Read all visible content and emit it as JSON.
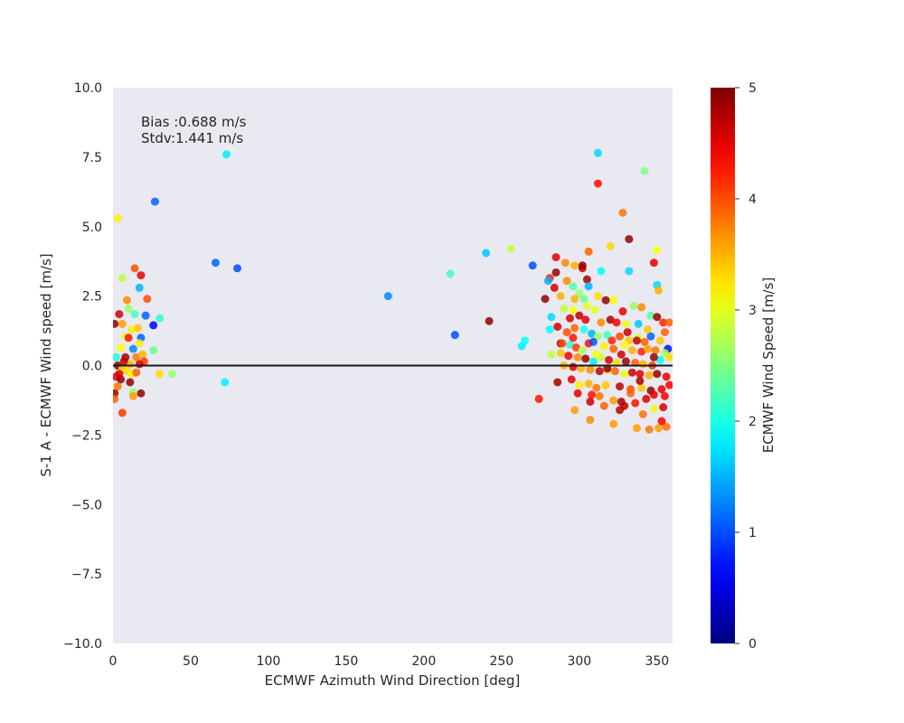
{
  "chart_data": {
    "type": "scatter",
    "xlabel": "ECMWF Azimuth Wind Direction [deg]",
    "ylabel": "S-1 A - ECMWF Wind speed [m/s]",
    "xlim": [
      0,
      360
    ],
    "ylim": [
      -10,
      10
    ],
    "x_ticks": [
      "0",
      "50",
      "100",
      "150",
      "200",
      "250",
      "300",
      "350"
    ],
    "y_ticks": [
      "10.0",
      "7.5",
      "5.0",
      "2.5",
      "0.0",
      "−2.5",
      "−5.0",
      "−7.5",
      "−10.0"
    ],
    "x_tick_values": [
      0,
      50,
      100,
      150,
      200,
      250,
      300,
      350
    ],
    "y_tick_values": [
      10,
      7.5,
      5,
      2.5,
      0,
      -2.5,
      -5,
      -7.5,
      -10
    ],
    "annotation_line1": "Bias :0.688 m/s",
    "annotation_line2": "Stdv:1.441 m/s",
    "reference_line_y": 0,
    "grid": false,
    "background": "#e9e9f1",
    "colormap": "jet",
    "colorbar": {
      "label": "ECMWF Wind Speed [m/s]",
      "range": [
        0,
        5
      ],
      "ticks": [
        "0",
        "1",
        "2",
        "3",
        "4",
        "5"
      ],
      "tick_values": [
        0,
        1,
        2,
        3,
        4,
        5
      ]
    },
    "points": [
      [
        3,
        5.3,
        3.2
      ],
      [
        27,
        5.9,
        1.1
      ],
      [
        73,
        7.6,
        1.8
      ],
      [
        66,
        3.7,
        1.1
      ],
      [
        80,
        3.5,
        1.0
      ],
      [
        177,
        2.5,
        1.3
      ],
      [
        217,
        3.3,
        2.2
      ],
      [
        240,
        4.05,
        1.6
      ],
      [
        256,
        4.2,
        2.8
      ],
      [
        220,
        1.1,
        1.0
      ],
      [
        242,
        1.6,
        4.9
      ],
      [
        263,
        0.7,
        1.8
      ],
      [
        265,
        0.9,
        1.9
      ],
      [
        270,
        3.6,
        1.0
      ],
      [
        274,
        -1.2,
        4.3
      ],
      [
        72,
        -0.6,
        1.8
      ],
      [
        26,
        1.45,
        0.6
      ],
      [
        30,
        1.7,
        2.1
      ],
      [
        38,
        -0.3,
        2.6
      ],
      [
        30,
        -0.3,
        3.3
      ],
      [
        26,
        0.55,
        2.4
      ],
      [
        22,
        2.4,
        4.0
      ],
      [
        18,
        3.25,
        4.5
      ],
      [
        14,
        3.5,
        4.0
      ],
      [
        17,
        2.8,
        1.5
      ],
      [
        21,
        1.8,
        1.1
      ],
      [
        18,
        1.0,
        1.1
      ],
      [
        6,
        3.15,
        2.8
      ],
      [
        9,
        2.35,
        3.7
      ],
      [
        4,
        1.85,
        4.6
      ],
      [
        1,
        1.5,
        4.9
      ],
      [
        10,
        2.05,
        2.6
      ],
      [
        14,
        1.85,
        2.2
      ],
      [
        12,
        1.3,
        3.2
      ],
      [
        16,
        1.35,
        3.4
      ],
      [
        6,
        1.5,
        3.6
      ],
      [
        8,
        1.05,
        3.0
      ],
      [
        10,
        1.0,
        4.3
      ],
      [
        13,
        0.6,
        1.3
      ],
      [
        17,
        0.8,
        3.2
      ],
      [
        2,
        0.3,
        2.0
      ],
      [
        5,
        0.65,
        3.1
      ],
      [
        8,
        0.3,
        4.8
      ],
      [
        11,
        0.05,
        3.5
      ],
      [
        15,
        0.3,
        3.8
      ],
      [
        19,
        0.4,
        3.5
      ],
      [
        20,
        0.15,
        4.1
      ],
      [
        17,
        0.05,
        4.6
      ],
      [
        3,
        0.0,
        4.9
      ],
      [
        6,
        -0.1,
        3.4
      ],
      [
        9,
        -0.2,
        3.3
      ],
      [
        12,
        -0.3,
        3.2
      ],
      [
        15,
        -0.25,
        3.9
      ],
      [
        2,
        -0.4,
        4.5
      ],
      [
        5,
        -0.5,
        4.9
      ],
      [
        3,
        -0.75,
        3.8
      ],
      [
        11,
        -0.6,
        4.9
      ],
      [
        13,
        -0.95,
        2.6
      ],
      [
        13,
        -1.1,
        3.6
      ],
      [
        18,
        -1.0,
        4.9
      ],
      [
        1,
        -1.0,
        4.9
      ],
      [
        6,
        -1.7,
        4.1
      ],
      [
        1,
        -1.2,
        3.9
      ],
      [
        4,
        -0.3,
        4.6
      ],
      [
        7,
        0.15,
        4.7
      ],
      [
        285,
        3.9,
        4.5
      ],
      [
        291,
        3.7,
        3.7
      ],
      [
        297,
        3.6,
        3.5
      ],
      [
        302,
        3.5,
        4.6
      ],
      [
        302,
        3.6,
        4.9
      ],
      [
        306,
        4.1,
        3.9
      ],
      [
        312,
        6.55,
        4.3
      ],
      [
        312,
        7.65,
        1.7
      ],
      [
        320,
        4.3,
        3.3
      ],
      [
        328,
        5.5,
        3.8
      ],
      [
        332,
        4.55,
        4.9
      ],
      [
        342,
        7.0,
        2.5
      ],
      [
        348,
        3.7,
        4.5
      ],
      [
        350,
        4.15,
        3.1
      ],
      [
        350,
        2.9,
        1.7
      ],
      [
        351,
        2.7,
        3.5
      ],
      [
        332,
        3.4,
        1.7
      ],
      [
        314,
        3.4,
        1.9
      ],
      [
        305,
        3.1,
        4.8
      ],
      [
        285,
        3.35,
        4.9
      ],
      [
        281,
        3.15,
        4.2
      ],
      [
        280,
        3.05,
        1.5
      ],
      [
        292,
        3.05,
        3.7
      ],
      [
        284,
        2.8,
        4.6
      ],
      [
        296,
        2.85,
        2.3
      ],
      [
        306,
        2.85,
        1.5
      ],
      [
        300,
        2.6,
        2.6
      ],
      [
        288,
        2.5,
        3.5
      ],
      [
        278,
        2.4,
        4.9
      ],
      [
        303,
        2.4,
        2.4
      ],
      [
        312,
        2.5,
        3.3
      ],
      [
        322,
        2.35,
        3.1
      ],
      [
        317,
        2.35,
        4.9
      ],
      [
        297,
        2.4,
        3.5
      ],
      [
        290,
        2.05,
        2.8
      ],
      [
        296,
        2.0,
        3.1
      ],
      [
        305,
        2.15,
        3.0
      ],
      [
        310,
        2.0,
        3.0
      ],
      [
        328,
        1.95,
        4.5
      ],
      [
        335,
        2.15,
        2.6
      ],
      [
        340,
        2.1,
        3.7
      ],
      [
        282,
        1.75,
        1.7
      ],
      [
        294,
        1.7,
        4.6
      ],
      [
        300,
        1.8,
        4.7
      ],
      [
        304,
        1.65,
        4.5
      ],
      [
        314,
        1.55,
        3.7
      ],
      [
        320,
        1.65,
        4.8
      ],
      [
        324,
        1.55,
        4.4
      ],
      [
        330,
        1.5,
        3.0
      ],
      [
        338,
        1.5,
        1.6
      ],
      [
        346,
        1.8,
        2.3
      ],
      [
        350,
        1.75,
        4.9
      ],
      [
        354,
        1.55,
        4.2
      ],
      [
        358,
        1.55,
        3.9
      ],
      [
        355,
        1.2,
        3.9
      ],
      [
        286,
        1.4,
        4.6
      ],
      [
        281,
        1.3,
        1.9
      ],
      [
        292,
        1.2,
        4.0
      ],
      [
        297,
        1.35,
        3.9
      ],
      [
        303,
        1.3,
        2.0
      ],
      [
        308,
        1.15,
        1.5
      ],
      [
        312,
        1.05,
        2.6
      ],
      [
        318,
        1.1,
        2.2
      ],
      [
        326,
        1.05,
        4.0
      ],
      [
        332,
        0.9,
        3.4
      ],
      [
        338,
        1.0,
        2.9
      ],
      [
        342,
        0.85,
        3.9
      ],
      [
        346,
        1.05,
        1.1
      ],
      [
        352,
        0.9,
        3.4
      ],
      [
        357,
        0.6,
        0.7
      ],
      [
        288,
        0.8,
        4.9
      ],
      [
        294,
        0.75,
        2.1
      ],
      [
        298,
        0.65,
        4.1
      ],
      [
        306,
        0.8,
        4.3
      ],
      [
        309,
        0.85,
        1.0
      ],
      [
        316,
        0.7,
        3.2
      ],
      [
        322,
        0.6,
        3.9
      ],
      [
        329,
        0.75,
        3.1
      ],
      [
        334,
        0.55,
        3.5
      ],
      [
        340,
        0.5,
        4.2
      ],
      [
        344,
        0.6,
        3.6
      ],
      [
        349,
        0.55,
        3.8
      ],
      [
        355,
        0.45,
        2.7
      ],
      [
        358,
        0.3,
        3.3
      ],
      [
        352,
        0.2,
        1.9
      ],
      [
        282,
        0.4,
        2.8
      ],
      [
        288,
        0.45,
        3.4
      ],
      [
        293,
        0.35,
        4.4
      ],
      [
        299,
        0.3,
        3.7
      ],
      [
        304,
        0.25,
        4.9
      ],
      [
        309,
        0.15,
        1.8
      ],
      [
        314,
        0.3,
        2.8
      ],
      [
        319,
        0.2,
        4.6
      ],
      [
        324,
        0.1,
        3.3
      ],
      [
        330,
        0.15,
        4.9
      ],
      [
        336,
        0.1,
        3.9
      ],
      [
        341,
        0.05,
        3.5
      ],
      [
        347,
        0.0,
        4.1
      ],
      [
        290,
        0.0,
        3.5
      ],
      [
        296,
        -0.05,
        4.5
      ],
      [
        301,
        -0.1,
        3.5
      ],
      [
        307,
        -0.15,
        3.7
      ],
      [
        313,
        -0.2,
        4.7
      ],
      [
        318,
        -0.15,
        3.4
      ],
      [
        323,
        -0.2,
        3.9
      ],
      [
        329,
        -0.3,
        3.0
      ],
      [
        334,
        -0.25,
        4.6
      ],
      [
        339,
        -0.3,
        4.5
      ],
      [
        345,
        -0.35,
        3.5
      ],
      [
        350,
        -0.3,
        4.9
      ],
      [
        356,
        -0.4,
        4.5
      ],
      [
        286,
        -0.6,
        4.8
      ],
      [
        295,
        -0.5,
        4.5
      ],
      [
        300,
        -0.7,
        3.2
      ],
      [
        306,
        -0.65,
        3.5
      ],
      [
        311,
        -0.8,
        3.8
      ],
      [
        317,
        -0.7,
        3.4
      ],
      [
        326,
        -0.75,
        4.7
      ],
      [
        333,
        -0.85,
        4.0
      ],
      [
        340,
        -0.8,
        3.4
      ],
      [
        346,
        -0.9,
        4.9
      ],
      [
        353,
        -0.85,
        4.5
      ],
      [
        358,
        -0.7,
        4.4
      ],
      [
        299,
        -1.0,
        4.5
      ],
      [
        308,
        -1.05,
        4.3
      ],
      [
        313,
        -1.1,
        3.8
      ],
      [
        322,
        -1.25,
        3.6
      ],
      [
        327,
        -1.3,
        4.8
      ],
      [
        333,
        -1.0,
        3.9
      ],
      [
        336,
        -1.35,
        4.3
      ],
      [
        343,
        -1.2,
        4.6
      ],
      [
        348,
        -1.05,
        4.5
      ],
      [
        355,
        -1.1,
        4.4
      ],
      [
        307,
        -1.3,
        4.6
      ],
      [
        316,
        -1.45,
        3.9
      ],
      [
        329,
        -1.45,
        4.7
      ],
      [
        326,
        -1.6,
        4.7
      ],
      [
        297,
        -1.6,
        3.6
      ],
      [
        307,
        -1.95,
        3.7
      ],
      [
        322,
        -2.1,
        3.6
      ],
      [
        337,
        -2.25,
        3.6
      ],
      [
        345,
        -2.3,
        3.8
      ],
      [
        351,
        -2.25,
        3.6
      ],
      [
        356,
        -2.2,
        3.8
      ],
      [
        353,
        -2.0,
        4.4
      ],
      [
        341,
        -1.75,
        3.8
      ],
      [
        348,
        -1.55,
        3.0
      ],
      [
        354,
        -1.5,
        4.6
      ],
      [
        318,
        -0.1,
        4.9
      ],
      [
        327,
        0.4,
        4.6
      ],
      [
        311,
        0.4,
        3.1
      ],
      [
        302,
        0.55,
        2.7
      ],
      [
        296,
        1.0,
        4.3
      ],
      [
        289,
        0.8,
        4.0
      ],
      [
        331,
        1.2,
        4.6
      ],
      [
        344,
        1.3,
        3.4
      ],
      [
        348,
        0.3,
        4.9
      ],
      [
        339,
        -0.55,
        4.8
      ],
      [
        321,
        0.9,
        4.2
      ],
      [
        337,
        0.9,
        4.7
      ]
    ]
  }
}
